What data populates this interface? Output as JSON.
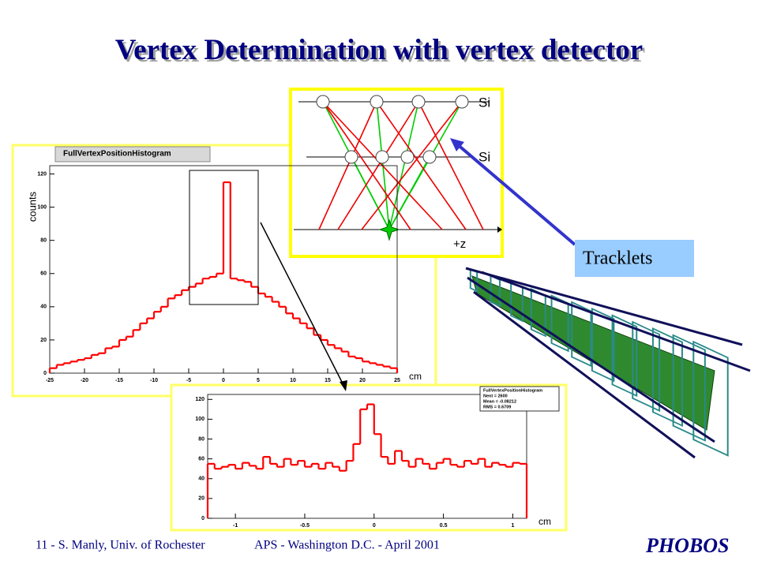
{
  "title": "Vertex Determination with vertex detector",
  "chart_data": [
    {
      "type": "histogram",
      "title": "FullVertexPositionHistogram",
      "ylabel": "counts",
      "xlabel": "cm",
      "color": "#ff0000",
      "xlim": [
        -25,
        25
      ],
      "ylim": [
        0,
        125
      ],
      "xticks": [
        -25,
        -20,
        -15,
        -10,
        -5,
        0,
        5,
        10,
        15,
        20,
        25
      ],
      "yticks": [
        0,
        20,
        40,
        60,
        80,
        100,
        120
      ],
      "bins": [
        -25,
        -24,
        -23,
        -22,
        -21,
        -20,
        -19,
        -18,
        -17,
        -16,
        -15,
        -14,
        -13,
        -12,
        -11,
        -10,
        -9,
        -8,
        -7,
        -6,
        -5,
        -4,
        -3,
        -2,
        -1,
        0,
        1,
        2,
        3,
        4,
        5,
        6,
        7,
        8,
        9,
        10,
        11,
        12,
        13,
        14,
        15,
        16,
        17,
        18,
        19,
        20,
        21,
        22,
        23,
        24,
        25
      ],
      "values": [
        3,
        5,
        6,
        7,
        8,
        9,
        11,
        12,
        15,
        16,
        20,
        22,
        26,
        30,
        33,
        37,
        40,
        45,
        47,
        50,
        52,
        54,
        57,
        58,
        60,
        115,
        57,
        56,
        55,
        52,
        48,
        46,
        43,
        40,
        36,
        33,
        30,
        27,
        23,
        20,
        17,
        15,
        13,
        10,
        9,
        7,
        6,
        5,
        4,
        3
      ]
    },
    {
      "type": "histogram",
      "xlabel": "cm",
      "color": "#ff0000",
      "stats": [
        "FullVertexPositionHistogram",
        "Nent = 2600",
        "Mean = -0.08212",
        "RMS = 0.6709"
      ],
      "xlim": [
        -1.2,
        1.1
      ],
      "ylim": [
        0,
        125
      ],
      "xticks": [
        -1,
        -0.5,
        0,
        0.5,
        1
      ],
      "yticks": [
        0,
        20,
        40,
        60,
        80,
        100,
        120
      ],
      "bins": [
        -1.2,
        -1.15,
        -1.1,
        -1.05,
        -1,
        -0.95,
        -0.9,
        -0.85,
        -0.8,
        -0.75,
        -0.7,
        -0.65,
        -0.6,
        -0.55,
        -0.5,
        -0.45,
        -0.4,
        -0.35,
        -0.3,
        -0.25,
        -0.2,
        -0.15,
        -0.1,
        -0.05,
        0,
        0.05,
        0.1,
        0.15,
        0.2,
        0.25,
        0.3,
        0.35,
        0.4,
        0.45,
        0.5,
        0.55,
        0.6,
        0.65,
        0.7,
        0.75,
        0.8,
        0.85,
        0.9,
        0.95,
        1,
        1.05,
        1.1
      ],
      "values": [
        55,
        50,
        52,
        54,
        50,
        56,
        53,
        50,
        62,
        55,
        52,
        60,
        54,
        58,
        52,
        55,
        50,
        56,
        52,
        48,
        58,
        75,
        110,
        115,
        85,
        62,
        55,
        68,
        58,
        52,
        60,
        55,
        50,
        56,
        60,
        54,
        52,
        58,
        55,
        60,
        52,
        56,
        54,
        52,
        56,
        55
      ]
    }
  ],
  "diagram": {
    "layer_labels": [
      "Si",
      "Si"
    ],
    "axis_label": "+z"
  },
  "callout": "Tracklets",
  "footer": {
    "left": "11 - S. Manly, Univ. of Rochester",
    "center": "APS - Washington D.C. - April 2001"
  },
  "logo": "PHOBOS"
}
